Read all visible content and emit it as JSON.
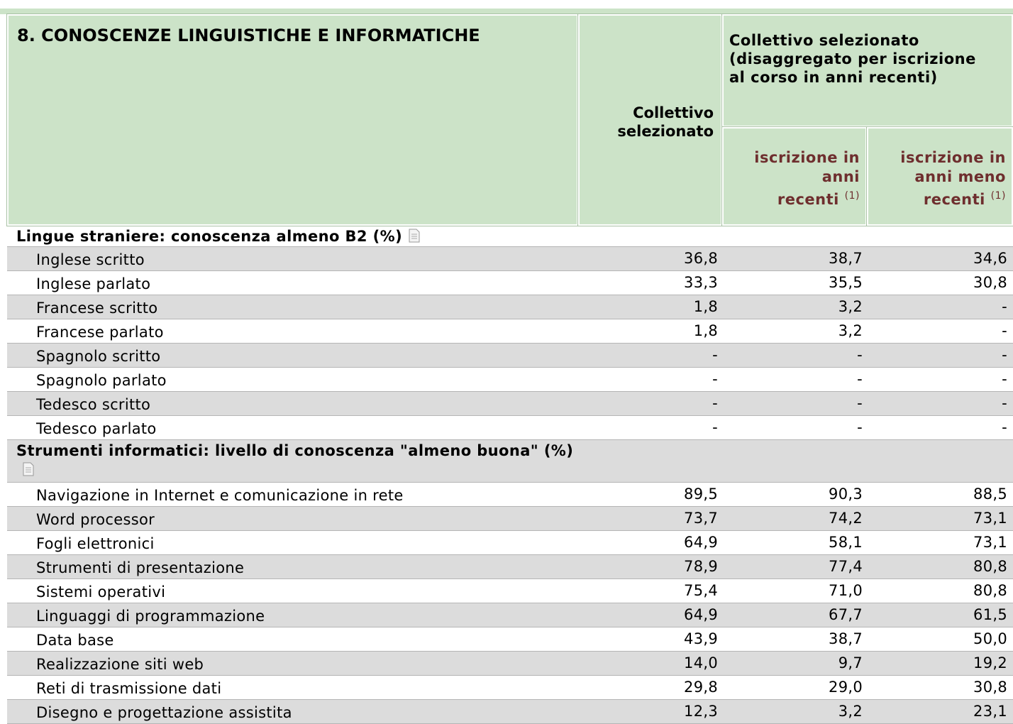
{
  "header": {
    "title": "8. CONOSCENZE LINGUISTICHE E INFORMATICHE",
    "col_total": [
      "Collettivo",
      "selezionato"
    ],
    "col_group": [
      "Collettivo selezionato",
      "(disaggregato per iscrizione",
      "al corso in anni recenti)"
    ],
    "col_recent": [
      "iscrizione in",
      "anni",
      "recenti"
    ],
    "col_recent_note": "(1)",
    "col_less": [
      "iscrizione in",
      "anni meno",
      "recenti"
    ],
    "col_less_note": "(1)"
  },
  "sections": [
    {
      "title": "Lingue straniere: conoscenza almeno B2 (%)",
      "rows": [
        {
          "label": "Inglese scritto",
          "values": [
            "36,8",
            "38,7",
            "34,6"
          ]
        },
        {
          "label": "Inglese parlato",
          "values": [
            "33,3",
            "35,5",
            "30,8"
          ]
        },
        {
          "label": "Francese scritto",
          "values": [
            "1,8",
            "3,2",
            "-"
          ]
        },
        {
          "label": "Francese parlato",
          "values": [
            "1,8",
            "3,2",
            "-"
          ]
        },
        {
          "label": "Spagnolo scritto",
          "values": [
            "-",
            "-",
            "-"
          ]
        },
        {
          "label": "Spagnolo parlato",
          "values": [
            "-",
            "-",
            "-"
          ]
        },
        {
          "label": "Tedesco scritto",
          "values": [
            "-",
            "-",
            "-"
          ]
        },
        {
          "label": "Tedesco parlato",
          "values": [
            "-",
            "-",
            "-"
          ]
        }
      ]
    },
    {
      "title": "Strumenti informatici: livello di conoscenza \"almeno buona\" (%)",
      "rows": [
        {
          "label": "Navigazione in Internet e comunicazione in rete",
          "values": [
            "89,5",
            "90,3",
            "88,5"
          ]
        },
        {
          "label": "Word processor",
          "values": [
            "73,7",
            "74,2",
            "73,1"
          ]
        },
        {
          "label": "Fogli elettronici",
          "values": [
            "64,9",
            "58,1",
            "73,1"
          ]
        },
        {
          "label": "Strumenti di presentazione",
          "values": [
            "78,9",
            "77,4",
            "80,8"
          ]
        },
        {
          "label": "Sistemi operativi",
          "values": [
            "75,4",
            "71,0",
            "80,8"
          ]
        },
        {
          "label": "Linguaggi di programmazione",
          "values": [
            "64,9",
            "67,7",
            "61,5"
          ]
        },
        {
          "label": "Data base",
          "values": [
            "43,9",
            "38,7",
            "50,0"
          ]
        },
        {
          "label": "Realizzazione siti web",
          "values": [
            "14,0",
            "9,7",
            "19,2"
          ]
        },
        {
          "label": "Reti di trasmissione dati",
          "values": [
            "29,8",
            "29,0",
            "30,8"
          ]
        },
        {
          "label": "Disegno e progettazione assistita",
          "values": [
            "12,3",
            "3,2",
            "23,1"
          ]
        }
      ]
    }
  ]
}
